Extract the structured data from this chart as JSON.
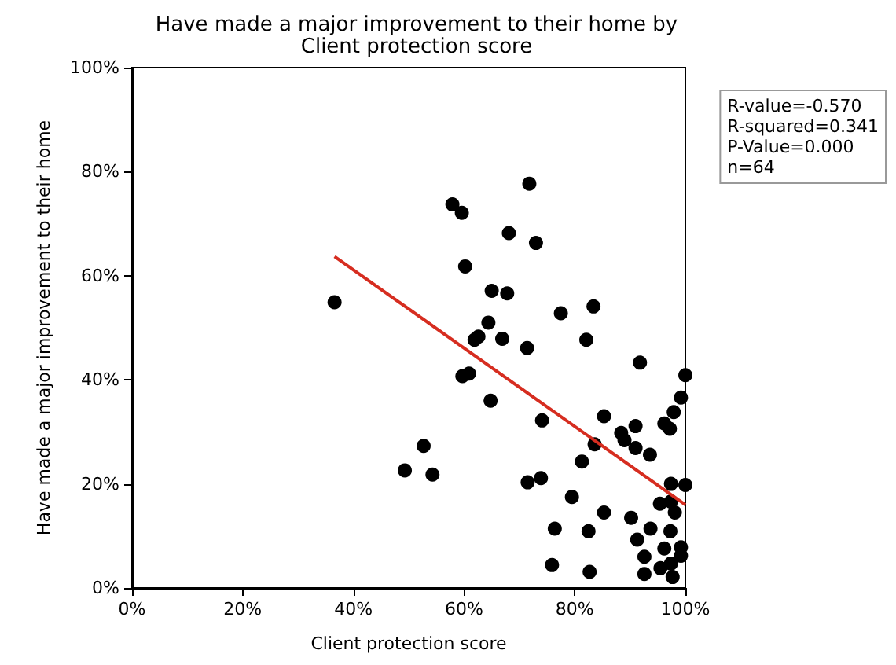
{
  "chart_data": {
    "type": "scatter",
    "title": "Have made a major improvement to their home by\nClient protection score",
    "xlabel": "Client protection score",
    "ylabel": "Have made a major improvement to their home",
    "x": [
      71.8,
      57.9,
      59.6,
      68.1,
      73.0,
      60.2,
      36.6,
      65.0,
      67.8,
      77.5,
      83.4,
      64.4,
      62.6,
      61.9,
      66.9,
      71.4,
      82.1,
      91.8,
      100,
      59.7,
      60.9,
      64.8,
      74.1,
      85.3,
      99.2,
      97.9,
      96.2,
      97.2,
      91.0,
      88.4,
      89.0,
      91.0,
      93.6,
      83.6,
      81.3,
      52.7,
      49.3,
      54.3,
      71.5,
      73.9,
      97.4,
      100,
      79.5,
      95.4,
      97.4,
      98.1,
      85.3,
      90.2,
      76.4,
      82.5,
      93.7,
      97.3,
      91.3,
      96.2,
      99.2,
      99.2,
      92.6,
      97.4,
      95.5,
      92.6,
      97.7,
      75.9,
      82.7
    ],
    "series": [
      {
        "color": "#000000",
        "marker": "circle",
        "values": [
          77.7,
          73.7,
          72.1,
          68.2,
          66.3,
          61.8,
          54.9,
          57.1,
          56.6,
          52.8,
          54.1,
          51.0,
          48.3,
          47.7,
          47.9,
          46.1,
          47.7,
          43.3,
          40.9,
          40.7,
          41.2,
          36.0,
          32.2,
          33.0,
          36.6,
          33.8,
          31.6,
          30.6,
          31.1,
          29.8,
          28.4,
          26.9,
          25.6,
          27.6,
          24.3,
          27.3,
          22.6,
          21.8,
          20.3,
          21.1,
          20.0,
          19.8,
          17.5,
          16.2,
          16.6,
          14.5,
          14.5,
          13.5,
          11.4,
          10.9,
          11.4,
          10.9,
          9.3,
          7.6,
          7.8,
          6.2,
          6.0,
          4.7,
          3.8,
          2.7,
          2.1,
          4.4,
          3.1
        ]
      },
      {
        "type": "line",
        "marker": "none",
        "color": "#d62d20",
        "x": [
          36.6,
          100
        ],
        "values": [
          63.7,
          16.0
        ]
      }
    ],
    "xlim": [
      0,
      100
    ],
    "ylim": [
      0,
      100
    ],
    "xticks": [
      {
        "value": 0,
        "label": "0%"
      },
      {
        "value": 20,
        "label": "20%"
      },
      {
        "value": 40,
        "label": "40%"
      },
      {
        "value": 60,
        "label": "60%"
      },
      {
        "value": 80,
        "label": "80%"
      },
      {
        "value": 100,
        "label": "100%"
      }
    ],
    "yticks": [
      {
        "value": 0,
        "label": "0%"
      },
      {
        "value": 20,
        "label": "20%"
      },
      {
        "value": 40,
        "label": "40%"
      },
      {
        "value": 60,
        "label": "60%"
      },
      {
        "value": 80,
        "label": "80%"
      },
      {
        "value": 100,
        "label": "100%"
      }
    ],
    "annotations": [
      "R-value=-0.570\nR-squared=0.341\nP-Value=0.000\nn=64"
    ],
    "grid": false,
    "line_style": "solid"
  }
}
